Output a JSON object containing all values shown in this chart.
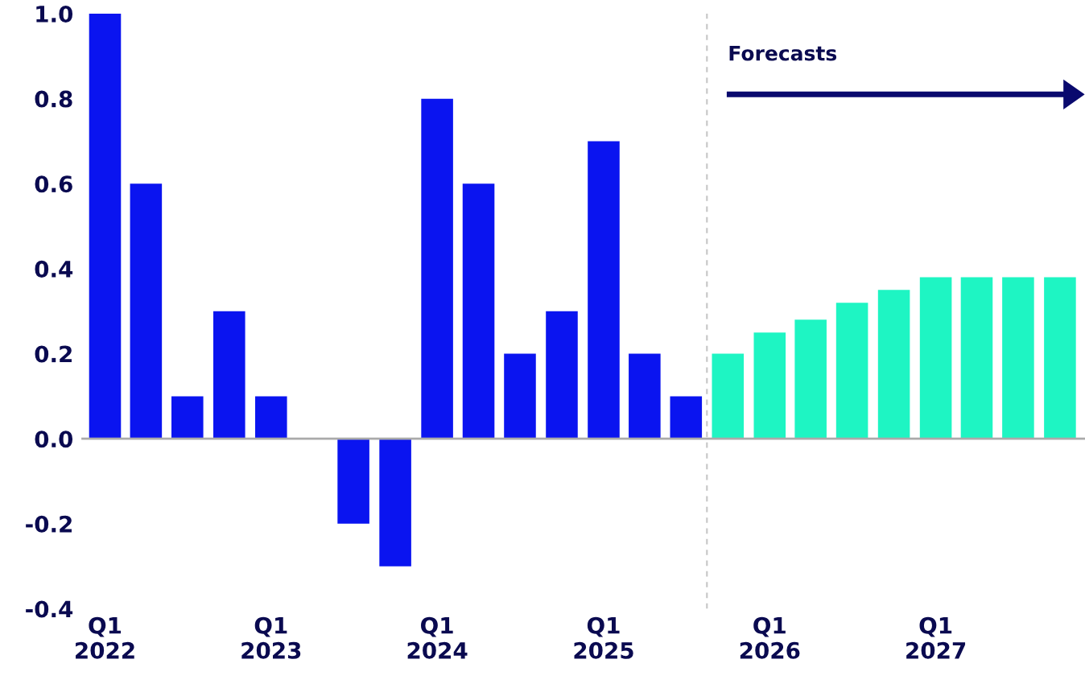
{
  "chart_data": {
    "type": "bar",
    "x": [
      "2022-01",
      "2022-04",
      "2022-07",
      "2022-10",
      "2023-01",
      "2023-04",
      "2023-07",
      "2023-10",
      "2024-01",
      "2024-04",
      "2024-07",
      "2024-10",
      "2025-01",
      "2025-04",
      "2025-07",
      "2025-10",
      "2026-01",
      "2026-04",
      "2026-07",
      "2026-10",
      "2027-01",
      "2027-04",
      "2027-07",
      "2027-10"
    ],
    "values": [
      1.0,
      0.6,
      0.1,
      0.3,
      0.1,
      0.0,
      -0.2,
      -0.3,
      0.8,
      0.6,
      0.2,
      0.3,
      0.7,
      0.2,
      0.1,
      0.2,
      0.25,
      0.28,
      0.32,
      0.35,
      0.38,
      0.38,
      0.38,
      0.38
    ],
    "colors": [
      "#0a14f0",
      "#0a14f0",
      "#0a14f0",
      "#0a14f0",
      "#0a14f0",
      "#0a14f0",
      "#0a14f0",
      "#0a14f0",
      "#0a14f0",
      "#0a14f0",
      "#0a14f0",
      "#0a14f0",
      "#0a14f0",
      "#0a14f0",
      "#0a14f0",
      "#1ef5c3",
      "#1ef5c3",
      "#1ef5c3",
      "#1ef5c3",
      "#1ef5c3",
      "#1ef5c3",
      "#1ef5c3",
      "#1ef5c3",
      "#1ef5c3"
    ],
    "xlim": [
      "2021-11-10",
      "2027-11-25"
    ],
    "xticks": [
      {
        "value": "2022-01",
        "label": "Q1\n2022"
      },
      {
        "value": "2023-01",
        "label": "Q1\n2023"
      },
      {
        "value": "2024-01",
        "label": "Q1\n2024"
      },
      {
        "value": "2025-01",
        "label": "Q1\n2025"
      },
      {
        "value": "2026-01",
        "label": "Q1\n2026"
      },
      {
        "value": "2027-01",
        "label": "Q1\n2027"
      }
    ],
    "ylim": [
      -0.4,
      1.0
    ],
    "yticks": [
      {
        "value": -0.4,
        "label": "-0.4"
      },
      {
        "value": -0.2,
        "label": "-0.2"
      },
      {
        "value": 0.0,
        "label": "0.0"
      },
      {
        "value": 0.2,
        "label": "0.2"
      },
      {
        "value": 0.4,
        "label": "0.4"
      },
      {
        "value": 0.6,
        "label": "0.6"
      },
      {
        "value": 0.8,
        "label": "0.8"
      },
      {
        "value": 1.0,
        "label": "1.0"
      }
    ],
    "ref_lines": [
      {
        "axis": "y",
        "value": 0,
        "color": "#aaaaaa",
        "line_style": "solid"
      },
      {
        "axis": "x",
        "value": "2025-08-16",
        "color": "#c8c8c8",
        "line_style": "dashed"
      }
    ],
    "annotations": [
      "Forecasts"
    ],
    "grid": false,
    "legend": false
  }
}
